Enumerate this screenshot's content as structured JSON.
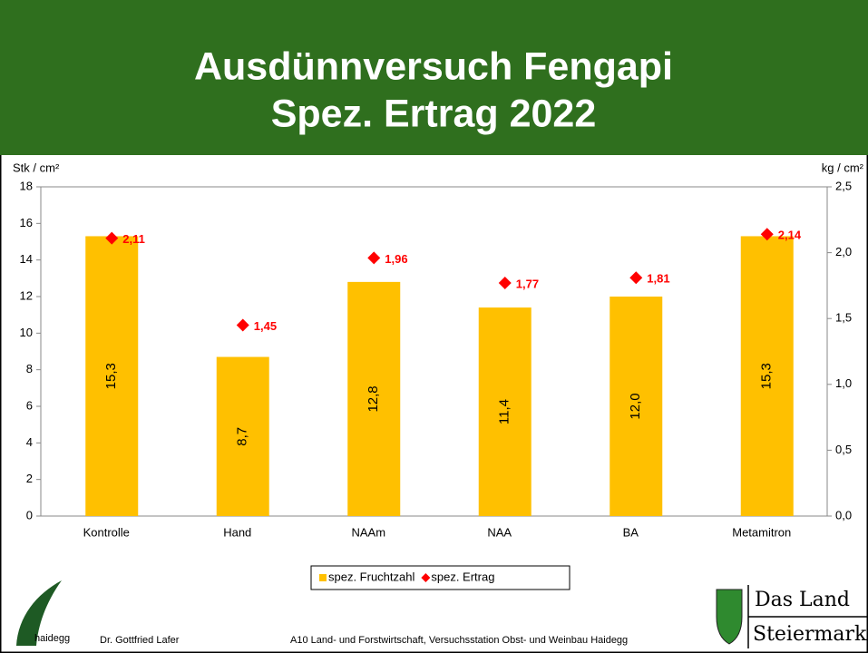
{
  "chart_data": {
    "type": "bar",
    "title": [
      "Ausdünnversuch Fengapi",
      "Spez. Ertrag 2022"
    ],
    "ylabel": "Stk / cm²",
    "y2label": "kg / cm²",
    "categories": [
      "Kontrolle",
      "Hand",
      "NAAm",
      "NAA",
      "BA",
      "Metamitron"
    ],
    "series": [
      {
        "name": "spez. Fruchtzahl",
        "type": "bar",
        "color": "#ffc000",
        "values": [
          15.3,
          8.7,
          12.8,
          11.4,
          12.0,
          15.3
        ],
        "value_labels": [
          "15,3",
          "8,7",
          "12,8",
          "11,4",
          "12,0",
          "15,3"
        ]
      },
      {
        "name": "spez. Ertrag",
        "type": "scatter",
        "axis": "y2",
        "color": "#ff0000",
        "values": [
          2.11,
          1.45,
          1.96,
          1.77,
          1.81,
          2.14
        ],
        "value_labels": [
          "2,11",
          "1,45",
          "1,96",
          "1,77",
          "1,81",
          "2,14"
        ]
      }
    ],
    "ylim": [
      0,
      18
    ],
    "yticks": [
      0,
      2,
      4,
      6,
      8,
      10,
      12,
      14,
      16,
      18
    ],
    "y2lim": [
      0,
      2.5
    ],
    "y2ticks": [
      {
        "value": 0,
        "label": "0,0"
      },
      {
        "value": 0.5,
        "label": "0,5"
      },
      {
        "value": 1,
        "label": "1,0"
      },
      {
        "value": 1.5,
        "label": "1,5"
      },
      {
        "value": 2,
        "label": "2,0"
      },
      {
        "value": 2.5,
        "label": "2,5"
      }
    ],
    "legend": "bottom"
  },
  "footer": {
    "logo_text": "haidegg",
    "author": "Dr. Gottfried Lafer",
    "institution": "A10 Land- und Forstwirtschaft, Versuchsstation Obst- und Weinbau Haidegg",
    "brand_line1": "Das Land",
    "brand_line2": "Steiermark"
  }
}
